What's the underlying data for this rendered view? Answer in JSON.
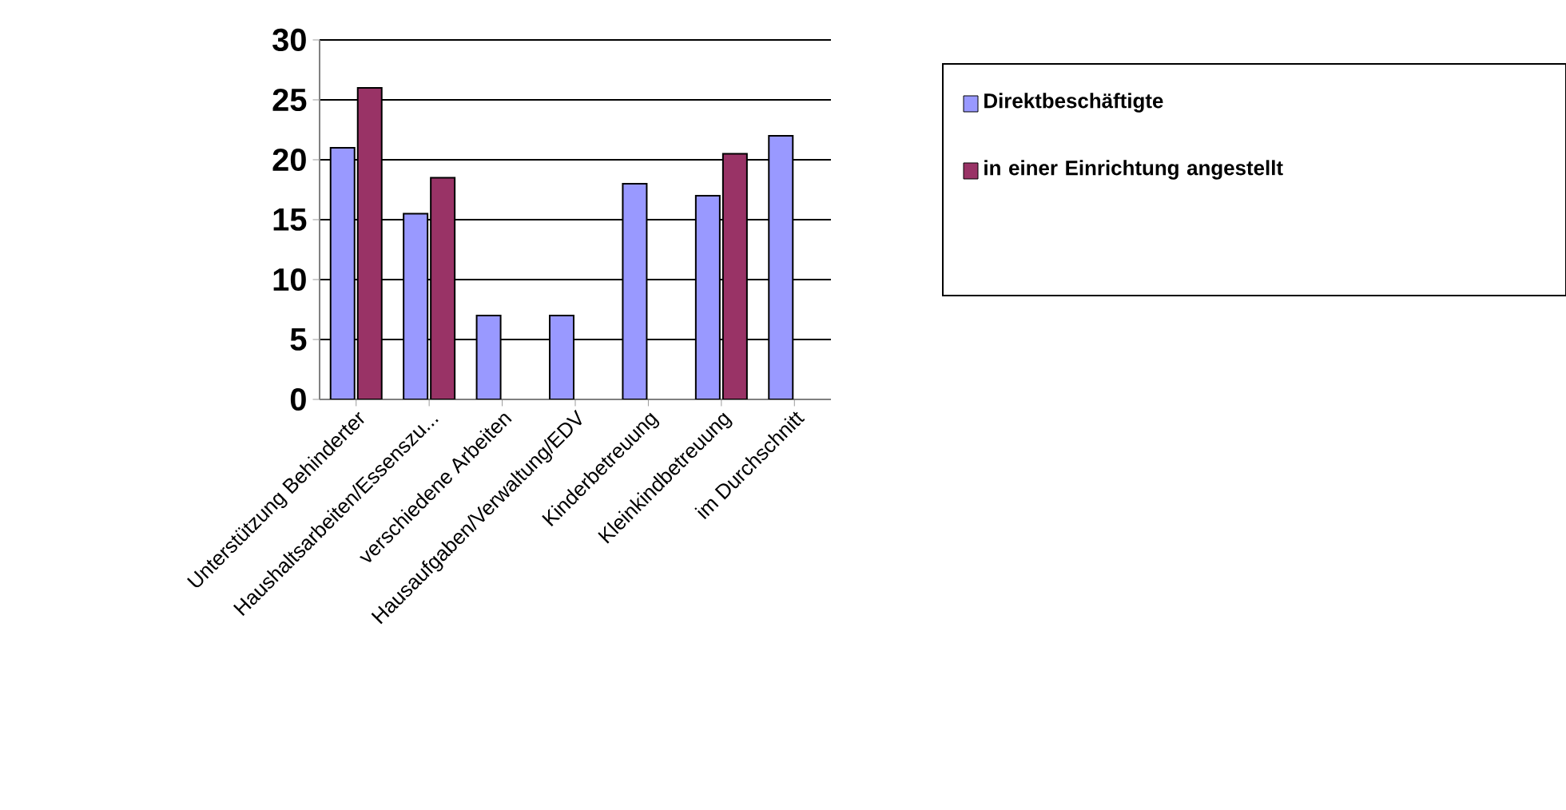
{
  "chart_data": {
    "type": "bar",
    "categories": [
      "Unterstützung Behinderter",
      "Haushaltsarbeiten/Essenszu...",
      "verschiedene Arbeiten",
      "Hausaufgaben/Verwaltung/EDV",
      "Kinderbetreuung",
      "Kleinkindbetreuung",
      "im Durchschnitt"
    ],
    "series": [
      {
        "name": "Direktbeschäftigte",
        "color": "#9999ff",
        "values": [
          21,
          15.5,
          7,
          7,
          18,
          17,
          22
        ]
      },
      {
        "name": "in einer Einrichtung angestellt",
        "color": "#993366",
        "values": [
          26,
          18.5,
          null,
          null,
          null,
          20.5,
          null
        ]
      }
    ],
    "ylim": [
      0,
      30
    ],
    "yticks": [
      0,
      5,
      10,
      15,
      20,
      25,
      30
    ],
    "grid": "y",
    "legend": "right"
  }
}
